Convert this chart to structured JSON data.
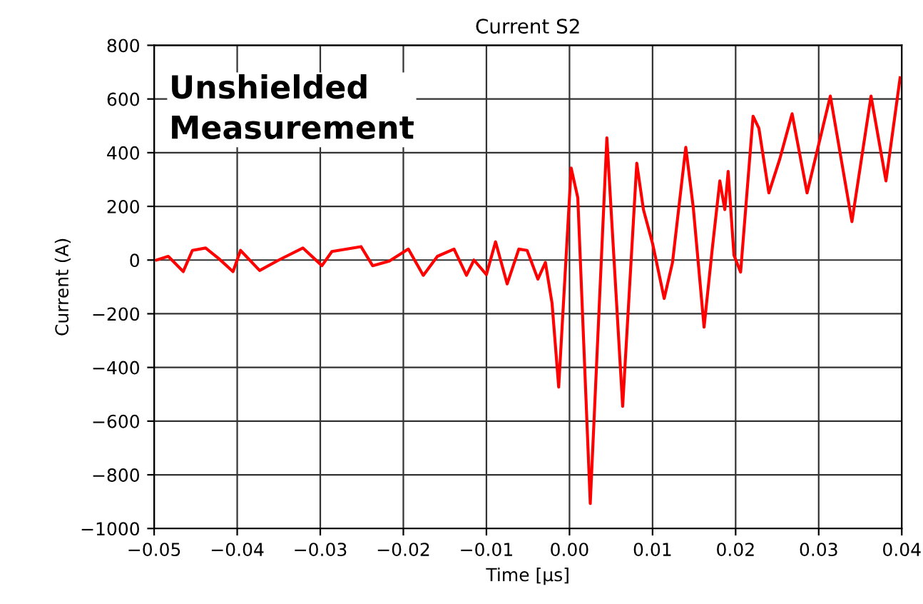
{
  "chart_data": {
    "type": "line",
    "title": "Current S2",
    "xlabel": "Time [µs]",
    "ylabel": "Current (A)",
    "xlim": [
      -0.05,
      0.04
    ],
    "xticks": [
      {
        "value": -0.05,
        "label": "−0.05"
      },
      {
        "value": -0.04,
        "label": "−0.04"
      },
      {
        "value": -0.03,
        "label": "−0.03"
      },
      {
        "value": -0.02,
        "label": "−0.02"
      },
      {
        "value": -0.01,
        "label": "−0.01"
      },
      {
        "value": 0.0,
        "label": "0.00"
      },
      {
        "value": 0.01,
        "label": "0.01"
      },
      {
        "value": 0.02,
        "label": "0.02"
      },
      {
        "value": 0.03,
        "label": "0.03"
      },
      {
        "value": 0.04,
        "label": "0.04"
      }
    ],
    "ylim": [
      -1000,
      800
    ],
    "yticks": [
      {
        "value": -1000,
        "label": "−1000"
      },
      {
        "value": -800,
        "label": "−800"
      },
      {
        "value": -600,
        "label": "−600"
      },
      {
        "value": -400,
        "label": "−400"
      },
      {
        "value": -200,
        "label": "−200"
      },
      0,
      200,
      400,
      600,
      800
    ],
    "grid": true,
    "marker": "none",
    "line_style": "solid",
    "annotations": [
      "Unshielded\nMeasurement"
    ],
    "series": [
      {
        "color": "#ff0000",
        "x": [
          -0.0497,
          -0.0483,
          -0.0465,
          -0.0454,
          -0.0438,
          -0.0422,
          -0.0405,
          -0.0396,
          -0.0373,
          -0.035,
          -0.0321,
          -0.0298,
          -0.0286,
          -0.0251,
          -0.0237,
          -0.0217,
          -0.0194,
          -0.0176,
          -0.0159,
          -0.0139,
          -0.0124,
          -0.0115,
          -0.01,
          -0.0089,
          -0.0075,
          -0.0061,
          -0.0051,
          -0.0038,
          -0.0029,
          -0.0021,
          -0.0013,
          0.0002,
          0.001,
          0.0025,
          0.0045,
          0.0064,
          0.0081,
          0.0089,
          0.01,
          0.0114,
          0.0124,
          0.014,
          0.0149,
          0.0162,
          0.0172,
          0.0181,
          0.0187,
          0.0191,
          0.0198,
          0.0206,
          0.0221,
          0.0228,
          0.024,
          0.0253,
          0.0268,
          0.0286,
          0.0314,
          0.034,
          0.0363,
          0.0381,
          0.0398
        ],
        "values": [
          0,
          14,
          -43,
          36,
          45,
          5,
          -43,
          36,
          -39,
          0,
          45,
          -21,
          32,
          50,
          -21,
          -4,
          41,
          -57,
          14,
          41,
          -57,
          0,
          -54,
          68,
          -89,
          41,
          36,
          -71,
          -9,
          -161,
          -473,
          343,
          232,
          -907,
          455,
          -545,
          361,
          188,
          62,
          -143,
          -9,
          420,
          196,
          -250,
          45,
          295,
          188,
          330,
          18,
          -45,
          536,
          491,
          250,
          375,
          545,
          250,
          611,
          143,
          611,
          295,
          679
        ]
      }
    ]
  }
}
